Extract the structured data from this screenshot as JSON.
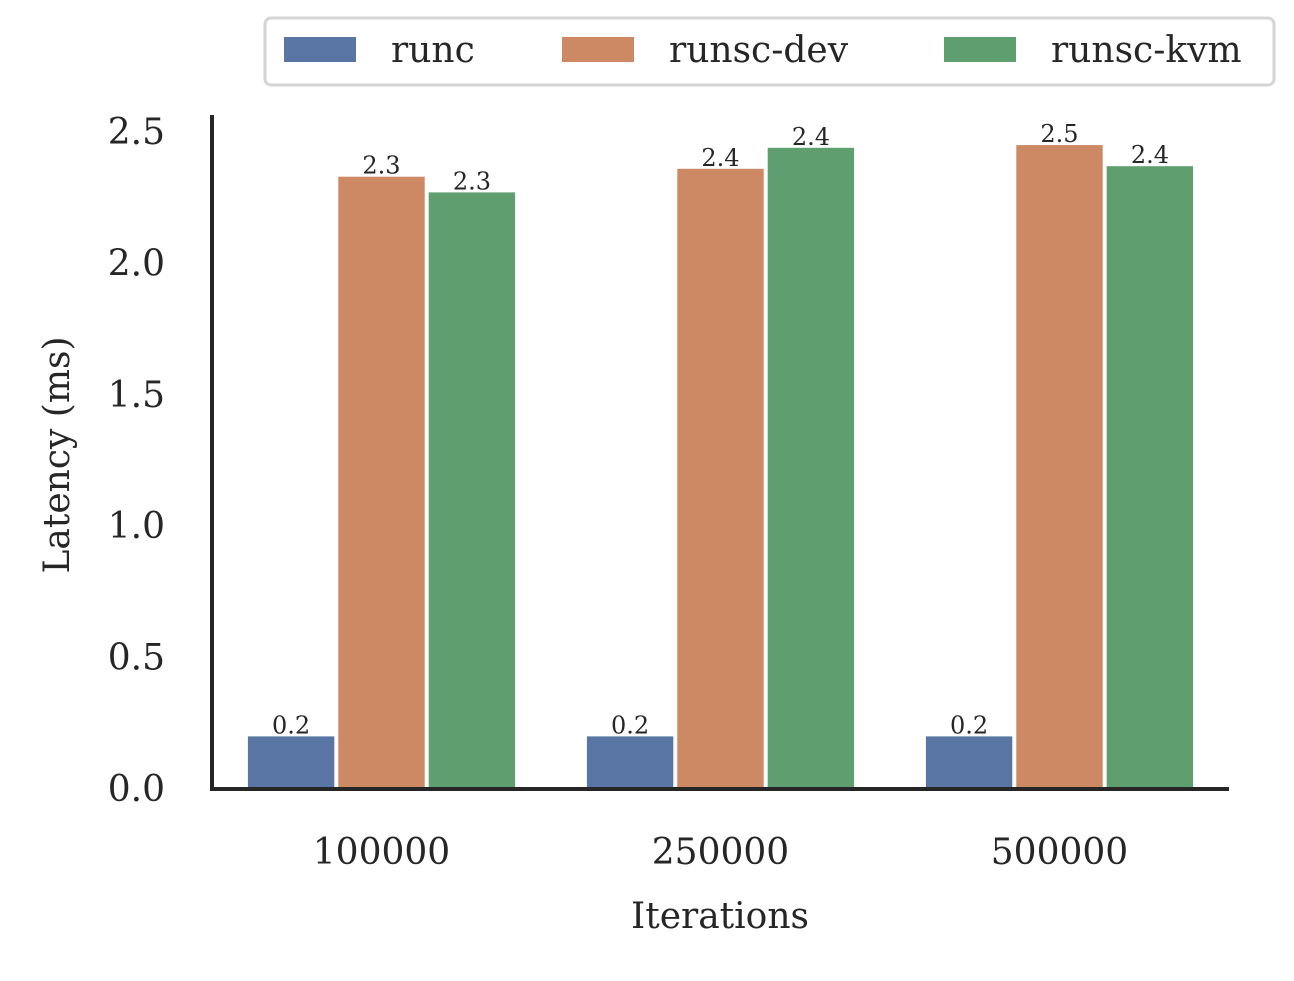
{
  "chart_data": {
    "type": "bar",
    "title": "",
    "xlabel": "Iterations",
    "ylabel": "Latency (ms)",
    "categories": [
      "100000",
      "250000",
      "500000"
    ],
    "series": [
      {
        "name": "runc",
        "color": "#5875a4",
        "values": [
          0.2,
          0.2,
          0.2
        ],
        "labels": [
          "0.2",
          "0.2",
          "0.2"
        ]
      },
      {
        "name": "runsc-dev",
        "color": "#cc8963",
        "values": [
          2.33,
          2.36,
          2.45
        ],
        "labels": [
          "2.3",
          "2.4",
          "2.5"
        ]
      },
      {
        "name": "runsc-kvm",
        "color": "#5f9e6e",
        "values": [
          2.27,
          2.44,
          2.37
        ],
        "labels": [
          "2.3",
          "2.4",
          "2.4"
        ]
      }
    ],
    "ylim": [
      0,
      2.58
    ],
    "yticks": [
      "0.0",
      "0.5",
      "1.0",
      "1.5",
      "2.0",
      "2.5"
    ],
    "grid": false,
    "legend_position": "top"
  }
}
